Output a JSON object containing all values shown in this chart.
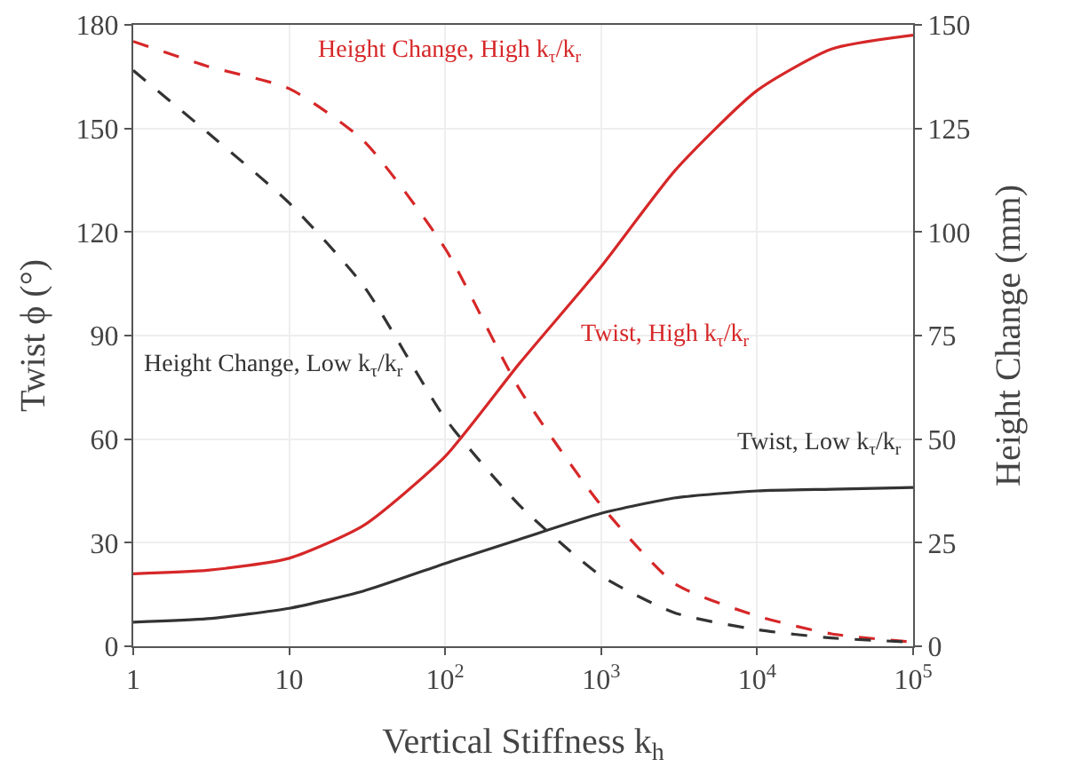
{
  "chart_data": {
    "type": "line",
    "xlabel": "Vertical Stiffness k$_{h}$",
    "ylabel": "Twist ϕ (°)",
    "y2label": "Height Change (mm)",
    "x": [
      1,
      3,
      10,
      30,
      100,
      300,
      1000,
      3000,
      10000,
      30000,
      100000
    ],
    "series": [
      {
        "name": "Height Change, High k$_{τ}$/k$_{r}$",
        "color": "#d62728",
        "line_style": "dashed",
        "axis": "y2",
        "values": [
          146,
          140,
          134.6,
          122,
          96,
          62,
          34,
          15,
          7.3,
          3,
          1
        ]
      },
      {
        "name": "Height Change, Low k$_{τ}$/k$_{r}$",
        "color": "#333333",
        "line_style": "dashed",
        "axis": "y2",
        "values": [
          139,
          124,
          107,
          87,
          55,
          34,
          17,
          8,
          4,
          2,
          1
        ]
      },
      {
        "name": "Twist, High k$_{τ}$/k$_{r}$",
        "color": "#d62728",
        "line_style": "solid",
        "values": [
          21,
          22,
          25.5,
          35,
          55,
          82,
          110,
          138,
          161,
          173,
          177
        ]
      },
      {
        "name": "Twist, Low k$_{τ}$/k$_{r}$",
        "color": "#333333",
        "line_style": "solid",
        "values": [
          7,
          8,
          11,
          16,
          24,
          31,
          38.5,
          43,
          45,
          45.5,
          46
        ]
      }
    ],
    "log": "x",
    "xlim": [
      1,
      100000
    ],
    "xticks": [
      1,
      10,
      {
        "value": 100,
        "label": "10$^{2}$"
      },
      {
        "value": 1000,
        "label": "10$^{3}$"
      },
      {
        "value": 10000,
        "label": "10$^{4}$"
      },
      {
        "value": 100000,
        "label": "10$^{5}$"
      }
    ],
    "ylim": [
      0,
      180
    ],
    "yticks": [
      0,
      30,
      60,
      90,
      120,
      150,
      180
    ],
    "y2lim": [
      0,
      150
    ],
    "y2ticks": [
      0,
      25,
      50,
      75,
      100,
      125,
      150
    ],
    "grid": true,
    "legend": false,
    "marker": "none"
  }
}
